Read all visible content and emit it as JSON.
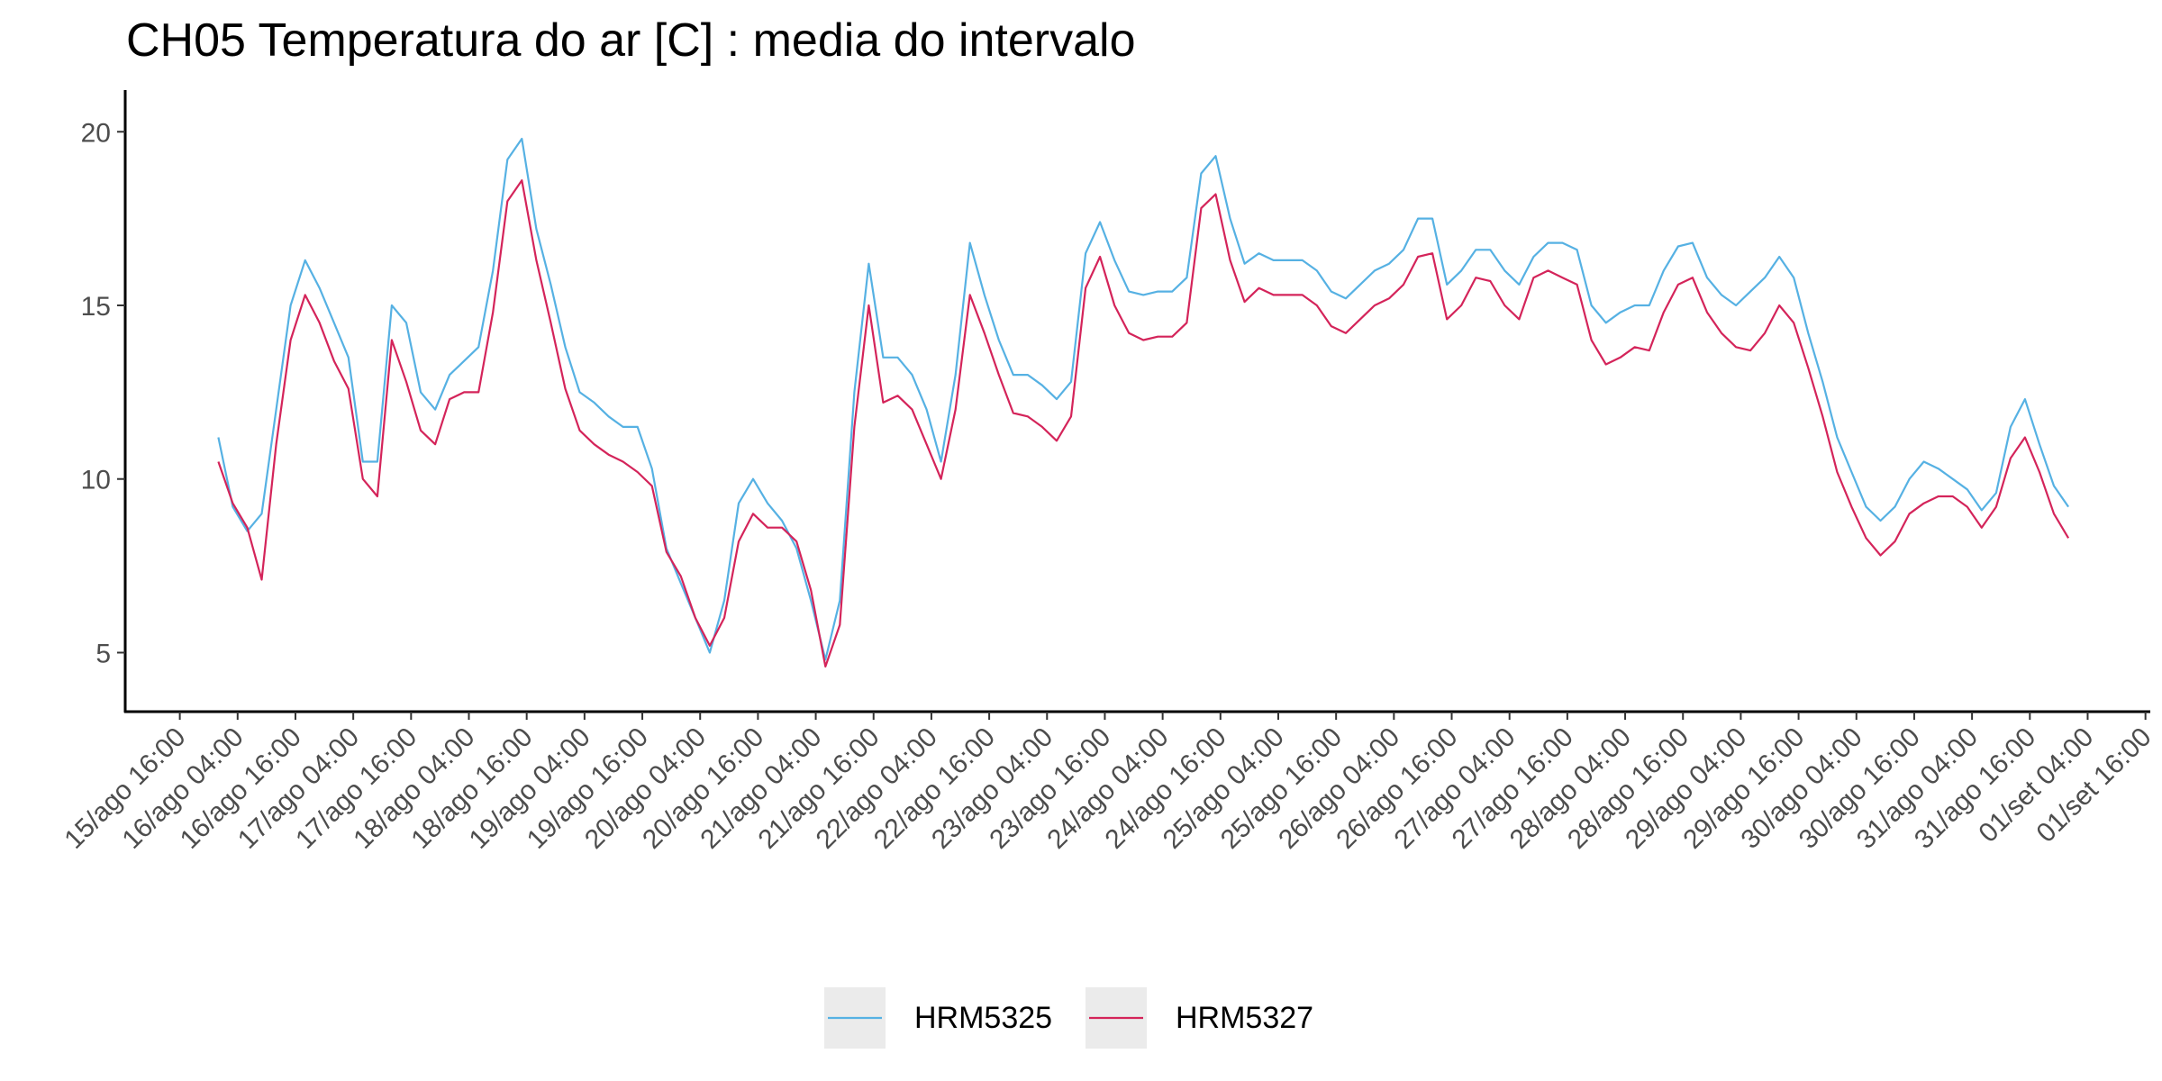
{
  "chart_data": {
    "type": "line",
    "title": "CH05 Temperatura do ar [C] : media do intervalo",
    "x": [
      "16/ago 00:00",
      "16/ago 03:00",
      "16/ago 06:00",
      "16/ago 09:00",
      "16/ago 12:00",
      "16/ago 15:00",
      "16/ago 18:00",
      "16/ago 21:00",
      "17/ago 00:00",
      "17/ago 03:00",
      "17/ago 06:00",
      "17/ago 09:00",
      "17/ago 12:00",
      "17/ago 15:00",
      "17/ago 18:00",
      "17/ago 21:00",
      "18/ago 00:00",
      "18/ago 03:00",
      "18/ago 06:00",
      "18/ago 09:00",
      "18/ago 12:00",
      "18/ago 15:00",
      "18/ago 18:00",
      "18/ago 21:00",
      "19/ago 00:00",
      "19/ago 03:00",
      "19/ago 06:00",
      "19/ago 09:00",
      "19/ago 12:00",
      "19/ago 15:00",
      "19/ago 18:00",
      "19/ago 21:00",
      "20/ago 00:00",
      "20/ago 03:00",
      "20/ago 06:00",
      "20/ago 09:00",
      "20/ago 12:00",
      "20/ago 15:00",
      "20/ago 18:00",
      "20/ago 21:00",
      "21/ago 00:00",
      "21/ago 03:00",
      "21/ago 06:00",
      "21/ago 09:00",
      "21/ago 12:00",
      "21/ago 15:00",
      "21/ago 18:00",
      "21/ago 21:00",
      "22/ago 00:00",
      "22/ago 03:00",
      "22/ago 06:00",
      "22/ago 09:00",
      "22/ago 12:00",
      "22/ago 15:00",
      "22/ago 18:00",
      "22/ago 21:00",
      "23/ago 00:00",
      "23/ago 03:00",
      "23/ago 06:00",
      "23/ago 09:00",
      "23/ago 12:00",
      "23/ago 15:00",
      "23/ago 18:00",
      "23/ago 21:00",
      "24/ago 00:00",
      "24/ago 03:00",
      "24/ago 06:00",
      "24/ago 09:00",
      "24/ago 12:00",
      "24/ago 15:00",
      "24/ago 18:00",
      "24/ago 21:00",
      "25/ago 00:00",
      "25/ago 03:00",
      "25/ago 06:00",
      "25/ago 09:00",
      "25/ago 12:00",
      "25/ago 15:00",
      "25/ago 18:00",
      "25/ago 21:00",
      "26/ago 00:00",
      "26/ago 03:00",
      "26/ago 06:00",
      "26/ago 09:00",
      "26/ago 12:00",
      "26/ago 15:00",
      "26/ago 18:00",
      "26/ago 21:00",
      "27/ago 00:00",
      "27/ago 03:00",
      "27/ago 06:00",
      "27/ago 09:00",
      "27/ago 12:00",
      "27/ago 15:00",
      "27/ago 18:00",
      "27/ago 21:00",
      "28/ago 00:00",
      "28/ago 03:00",
      "28/ago 06:00",
      "28/ago 09:00",
      "28/ago 12:00",
      "28/ago 15:00",
      "28/ago 18:00",
      "28/ago 21:00",
      "29/ago 00:00",
      "29/ago 03:00",
      "29/ago 06:00",
      "29/ago 09:00",
      "29/ago 12:00",
      "29/ago 15:00",
      "29/ago 18:00",
      "29/ago 21:00",
      "30/ago 00:00",
      "30/ago 03:00",
      "30/ago 06:00",
      "30/ago 09:00",
      "30/ago 12:00",
      "30/ago 15:00",
      "30/ago 18:00",
      "30/ago 21:00",
      "31/ago 00:00",
      "31/ago 03:00",
      "31/ago 06:00",
      "31/ago 09:00",
      "31/ago 12:00",
      "31/ago 15:00",
      "31/ago 18:00",
      "31/ago 21:00",
      "01/set 00:00"
    ],
    "series": [
      {
        "name": "HRM5325",
        "color": "#56b1e3",
        "values": [
          11.2,
          9.2,
          8.5,
          9.0,
          12,
          15,
          16.3,
          15.5,
          14.5,
          13.5,
          10.5,
          10.5,
          15,
          14.5,
          12.5,
          12,
          13,
          13.4,
          13.8,
          16,
          19.2,
          19.8,
          17.2,
          15.6,
          13.8,
          12.5,
          12.2,
          11.8,
          11.5,
          11.5,
          10.3,
          8,
          7,
          6,
          5,
          6.5,
          9.3,
          10,
          9.3,
          8.8,
          8,
          6.5,
          4.8,
          6.5,
          12.5,
          16.2,
          13.5,
          13.5,
          13,
          12,
          10.5,
          13,
          16.8,
          15.3,
          14,
          13,
          13,
          12.7,
          12.3,
          12.8,
          16.5,
          17.4,
          16.3,
          15.4,
          15.3,
          15.4,
          15.4,
          15.8,
          18.8,
          19.3,
          17.5,
          16.2,
          16.5,
          16.3,
          16.3,
          16.3,
          16,
          15.4,
          15.2,
          15.6,
          16,
          16.2,
          16.6,
          17.5,
          17.5,
          15.6,
          16,
          16.6,
          16.6,
          16,
          15.6,
          16.4,
          16.8,
          16.8,
          16.6,
          15,
          14.5,
          14.8,
          15,
          15,
          16,
          16.7,
          16.8,
          15.8,
          15.3,
          15,
          15.4,
          15.8,
          16.4,
          15.8,
          14.2,
          12.8,
          11.2,
          10.2,
          9.2,
          8.8,
          9.2,
          10,
          10.5,
          10.3,
          10,
          9.7,
          9.1,
          9.6,
          11.5,
          12.3,
          11,
          9.8,
          9.2
        ]
      },
      {
        "name": "HRM5327",
        "color": "#d4245a",
        "values": [
          10.5,
          9.3,
          8.6,
          7.1,
          11,
          14,
          15.3,
          14.5,
          13.4,
          12.6,
          10,
          9.5,
          14,
          12.8,
          11.4,
          11,
          12.3,
          12.5,
          12.5,
          14.8,
          18,
          18.6,
          16.3,
          14.5,
          12.6,
          11.4,
          11,
          10.7,
          10.5,
          10.2,
          9.8,
          7.9,
          7.2,
          6,
          5.2,
          6,
          8.2,
          9,
          8.6,
          8.6,
          8.2,
          6.8,
          4.6,
          5.8,
          11.5,
          15,
          12.2,
          12.4,
          12,
          11,
          10,
          12,
          15.3,
          14.2,
          13,
          11.9,
          11.8,
          11.5,
          11.1,
          11.8,
          15.5,
          16.4,
          15,
          14.2,
          14,
          14.1,
          14.1,
          14.5,
          17.8,
          18.2,
          16.3,
          15.1,
          15.5,
          15.3,
          15.3,
          15.3,
          15,
          14.4,
          14.2,
          14.6,
          15,
          15.2,
          15.6,
          16.4,
          16.5,
          14.6,
          15,
          15.8,
          15.7,
          15,
          14.6,
          15.8,
          16,
          15.8,
          15.6,
          14,
          13.3,
          13.5,
          13.8,
          13.7,
          14.8,
          15.6,
          15.8,
          14.8,
          14.2,
          13.8,
          13.7,
          14.2,
          15,
          14.5,
          13.2,
          11.8,
          10.2,
          9.2,
          8.3,
          7.8,
          8.2,
          9,
          9.3,
          9.5,
          9.5,
          9.2,
          8.6,
          9.2,
          10.6,
          11.2,
          10.2,
          9,
          8.3
        ]
      }
    ],
    "xlim": [
      "15/ago 04:40",
      "01/set 17:00"
    ],
    "xticks": [
      "15/ago 16:00",
      "16/ago 04:00",
      "16/ago 16:00",
      "17/ago 04:00",
      "17/ago 16:00",
      "18/ago 04:00",
      "18/ago 16:00",
      "19/ago 04:00",
      "19/ago 16:00",
      "20/ago 04:00",
      "20/ago 16:00",
      "21/ago 04:00",
      "21/ago 16:00",
      "22/ago 04:00",
      "22/ago 16:00",
      "23/ago 04:00",
      "23/ago 16:00",
      "24/ago 04:00",
      "24/ago 16:00",
      "25/ago 04:00",
      "25/ago 16:00",
      "26/ago 04:00",
      "26/ago 16:00",
      "27/ago 04:00",
      "27/ago 16:00",
      "28/ago 04:00",
      "28/ago 16:00",
      "29/ago 04:00",
      "29/ago 16:00",
      "30/ago 04:00",
      "30/ago 16:00",
      "31/ago 04:00",
      "31/ago 16:00",
      "01/set 04:00",
      "01/set 16:00"
    ],
    "ylim": [
      3.3,
      21.2
    ],
    "yticks": [
      5,
      10,
      15,
      20
    ],
    "grid": false,
    "legend": "bottom"
  }
}
